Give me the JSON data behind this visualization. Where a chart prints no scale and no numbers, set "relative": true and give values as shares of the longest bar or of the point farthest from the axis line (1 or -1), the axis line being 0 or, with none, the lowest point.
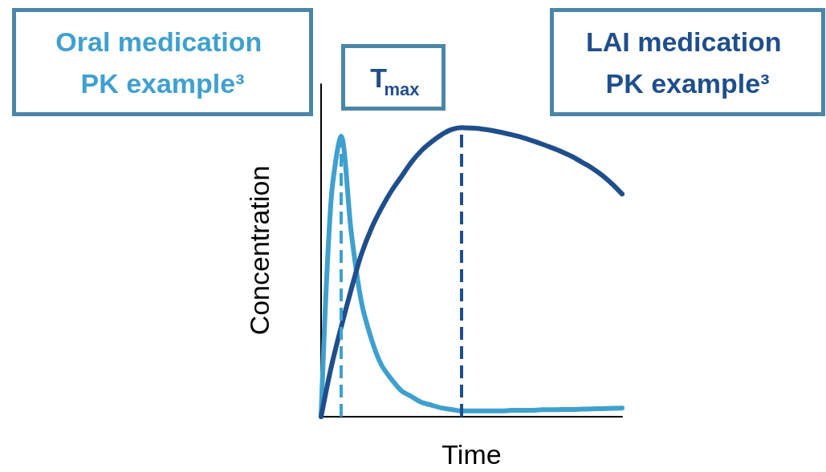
{
  "chart_data": {
    "type": "line",
    "relative": true,
    "xlabel": "Time",
    "ylabel": "Concentration",
    "categories": [
      null,
      null,
      null,
      null,
      null,
      null,
      null,
      null,
      null,
      null,
      null,
      null,
      null,
      null,
      null,
      null,
      null,
      null,
      null,
      null,
      null,
      null,
      null,
      null,
      null,
      null,
      null,
      null,
      null,
      null,
      null
    ],
    "series": [
      {
        "name": "Oral medication PK example³",
        "color": "#3fa0cf",
        "values": [
          0,
          0.75,
          0.97,
          0.64,
          0.4,
          0.27,
          0.18,
          0.13,
          0.09,
          0.07,
          0.05,
          0.04,
          0.03,
          0.025,
          0.02,
          0.02,
          0.02,
          0.02,
          0.02,
          0.022,
          0.022,
          0.022,
          0.024,
          0.024,
          0.025,
          0.025,
          0.026,
          0.027,
          0.028,
          0.029,
          0.03
        ]
      },
      {
        "name": "LAI medication PK example³",
        "color": "#1f4e8c",
        "values": [
          0,
          0.17,
          0.31,
          0.44,
          0.56,
          0.65,
          0.72,
          0.78,
          0.83,
          0.88,
          0.92,
          0.95,
          0.975,
          0.993,
          1,
          0.998,
          0.995,
          0.99,
          0.983,
          0.975,
          0.966,
          0.955,
          0.943,
          0.93,
          0.916,
          0.9,
          0.88,
          0.86,
          0.835,
          0.805,
          0.77
        ]
      }
    ],
    "annotations": [
      "T$_{max}$"
    ],
    "marker": "none",
    "line_style": "solid",
    "grid": false,
    "legend": false
  }
}
